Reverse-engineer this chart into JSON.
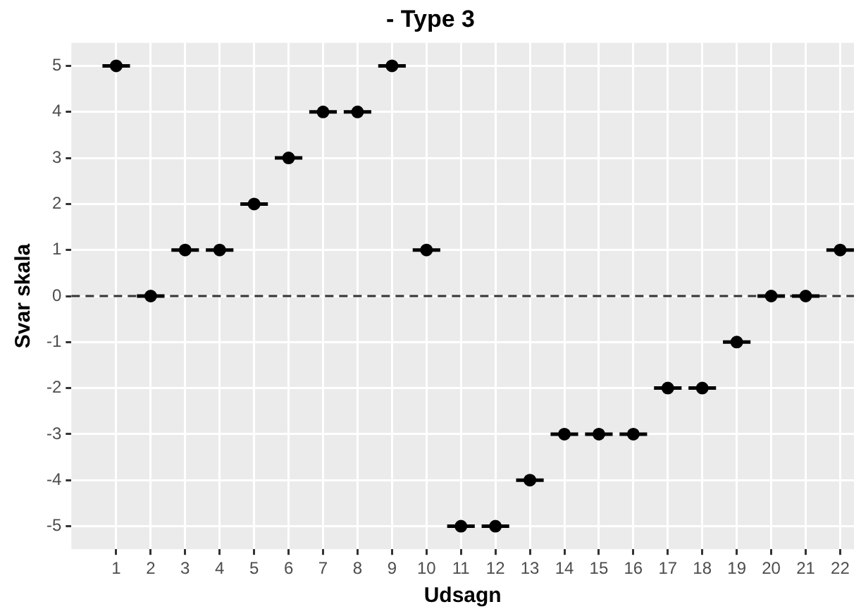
{
  "chart_data": {
    "type": "scatter",
    "title": "- Type 3",
    "xlabel": "Udsagn",
    "ylabel": "Svar skala",
    "x": [
      1,
      2,
      3,
      4,
      5,
      6,
      7,
      8,
      9,
      10,
      11,
      12,
      13,
      14,
      15,
      16,
      17,
      18,
      19,
      20,
      21,
      22
    ],
    "values": [
      5,
      0,
      1,
      1,
      2,
      3,
      4,
      4,
      5,
      1,
      -5,
      -5,
      -4,
      -3,
      -3,
      -3,
      -2,
      -2,
      -1,
      0,
      0,
      1
    ],
    "xerrors": [
      0.4,
      0.4,
      0.4,
      0.4,
      0.4,
      0.4,
      0.4,
      0.4,
      0.4,
      0.4,
      0.4,
      0.4,
      0.4,
      0.4,
      0.4,
      0.4,
      0.4,
      0.4,
      0.4,
      0.4,
      0.4,
      0.4
    ],
    "color": "#000000",
    "marker": "circle",
    "xlim": [
      -0.3,
      22.4
    ],
    "xticks": [
      1,
      2,
      3,
      4,
      5,
      6,
      7,
      8,
      9,
      10,
      11,
      12,
      13,
      14,
      15,
      16,
      17,
      18,
      19,
      20,
      21,
      22
    ],
    "ylim": [
      -5.5,
      5.5
    ],
    "yticks": [
      -5,
      -4,
      -3,
      -2,
      -1,
      0,
      1,
      2,
      3,
      4,
      5
    ],
    "ref_lines": [
      {
        "axis": "y",
        "value": 0,
        "line_style": "dashed",
        "color": "#333333"
      }
    ],
    "grid": true,
    "legend": false
  }
}
